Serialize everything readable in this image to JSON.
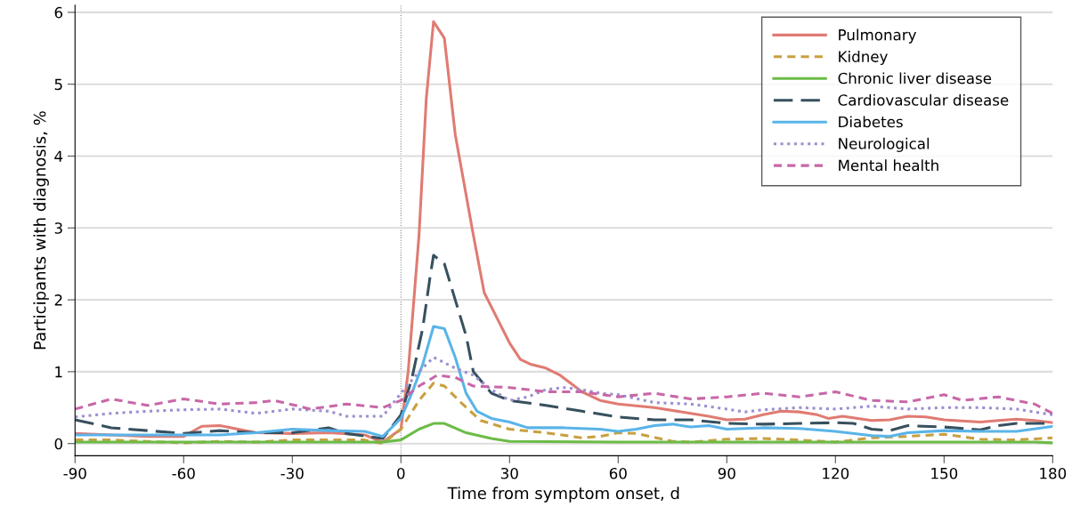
{
  "chart_data": {
    "type": "line",
    "xlabel": "Time from symptom onset, d",
    "ylabel": "Participants with diagnosis, %",
    "xlim": [
      -90,
      180
    ],
    "xticks": [
      -90,
      -60,
      -30,
      0,
      30,
      60,
      90,
      120,
      150,
      180
    ],
    "ylim": [
      -0.17,
      6.1
    ],
    "yticks": [
      0,
      1,
      2,
      3,
      4,
      5,
      6
    ],
    "grid": "y",
    "legend": "top right",
    "marker": "none",
    "ref_lines": [
      {
        "axis": "x",
        "value": 0,
        "color": "#888888",
        "line_style": "dotted"
      }
    ],
    "series": [
      {
        "name": "Pulmonary",
        "color": "#e07b72",
        "line_style": "solid",
        "x": [
          -90,
          -80,
          -70,
          -60,
          -55,
          -50,
          -45,
          -40,
          -30,
          -20,
          -10,
          -5,
          0,
          2,
          5,
          7,
          9,
          12,
          15,
          20,
          23,
          27,
          30,
          33,
          36,
          40,
          44,
          50,
          55,
          60,
          70,
          80,
          85,
          90,
          95,
          100,
          105,
          110,
          115,
          118,
          122,
          130,
          135,
          140,
          145,
          150,
          160,
          165,
          170,
          175,
          180
        ],
        "values": [
          0.14,
          0.12,
          0.1,
          0.1,
          0.24,
          0.25,
          0.2,
          0.15,
          0.14,
          0.15,
          0.12,
          0.02,
          0.2,
          1.0,
          2.9,
          4.8,
          5.87,
          5.64,
          4.3,
          2.9,
          2.1,
          1.7,
          1.4,
          1.17,
          1.1,
          1.05,
          0.95,
          0.72,
          0.6,
          0.55,
          0.5,
          0.42,
          0.38,
          0.33,
          0.34,
          0.4,
          0.45,
          0.44,
          0.4,
          0.35,
          0.38,
          0.32,
          0.33,
          0.38,
          0.37,
          0.33,
          0.3,
          0.32,
          0.34,
          0.32,
          0.29
        ]
      },
      {
        "name": "Kidney",
        "color": "#c8a040",
        "line_style": "dashed",
        "x": [
          -90,
          -80,
          -70,
          -60,
          -50,
          -40,
          -30,
          -20,
          -10,
          -5,
          0,
          5,
          9,
          12,
          17,
          22,
          30,
          40,
          50,
          55,
          60,
          65,
          75,
          80,
          90,
          100,
          110,
          120,
          130,
          140,
          150,
          160,
          170,
          180
        ],
        "values": [
          0.05,
          0.05,
          0.03,
          0.01,
          0.03,
          0.02,
          0.05,
          0.05,
          0.05,
          0.0,
          0.2,
          0.6,
          0.84,
          0.8,
          0.55,
          0.32,
          0.2,
          0.15,
          0.08,
          0.1,
          0.15,
          0.14,
          0.03,
          0.02,
          0.06,
          0.07,
          0.05,
          0.02,
          0.08,
          0.1,
          0.13,
          0.06,
          0.05,
          0.08
        ]
      },
      {
        "name": "Chronic liver disease",
        "color": "#6cbb47",
        "line_style": "solid",
        "x": [
          -90,
          -60,
          -30,
          -5,
          0,
          5,
          9,
          12,
          18,
          25,
          30,
          60,
          90,
          120,
          150,
          175,
          180
        ],
        "values": [
          0.02,
          0.02,
          0.02,
          0.02,
          0.05,
          0.2,
          0.28,
          0.28,
          0.15,
          0.07,
          0.03,
          0.02,
          0.02,
          0.02,
          0.02,
          0.02,
          0.01
        ]
      },
      {
        "name": "Cardiovascular disease",
        "color": "#37505e",
        "line_style": "longdash",
        "x": [
          -90,
          -80,
          -70,
          -60,
          -50,
          -40,
          -30,
          -20,
          -15,
          -5,
          0,
          3,
          6,
          8,
          9,
          12,
          15,
          18,
          20,
          25,
          30,
          36,
          40,
          50,
          60,
          70,
          80,
          90,
          100,
          110,
          120,
          125,
          130,
          135,
          140,
          150,
          160,
          165,
          170,
          180
        ],
        "values": [
          0.33,
          0.22,
          0.18,
          0.14,
          0.18,
          0.15,
          0.15,
          0.22,
          0.14,
          0.07,
          0.4,
          0.9,
          1.6,
          2.3,
          2.62,
          2.5,
          2.0,
          1.5,
          1.0,
          0.7,
          0.6,
          0.56,
          0.53,
          0.45,
          0.37,
          0.33,
          0.33,
          0.28,
          0.27,
          0.28,
          0.29,
          0.28,
          0.2,
          0.18,
          0.25,
          0.23,
          0.19,
          0.25,
          0.28,
          0.28
        ]
      },
      {
        "name": "Diabetes",
        "color": "#5ab4e8",
        "line_style": "solid",
        "x": [
          -90,
          -80,
          -70,
          -60,
          -50,
          -40,
          -30,
          -20,
          -10,
          -5,
          0,
          3,
          6,
          9,
          12,
          15,
          18,
          21,
          25,
          30,
          35,
          45,
          55,
          60,
          65,
          70,
          75,
          80,
          85,
          90,
          100,
          110,
          120,
          130,
          135,
          140,
          150,
          160,
          170,
          180
        ],
        "values": [
          0.12,
          0.12,
          0.12,
          0.12,
          0.12,
          0.15,
          0.2,
          0.18,
          0.17,
          0.1,
          0.35,
          0.7,
          1.1,
          1.63,
          1.6,
          1.2,
          0.7,
          0.45,
          0.35,
          0.3,
          0.22,
          0.22,
          0.2,
          0.17,
          0.2,
          0.25,
          0.27,
          0.23,
          0.25,
          0.2,
          0.22,
          0.21,
          0.17,
          0.11,
          0.1,
          0.15,
          0.18,
          0.17,
          0.17,
          0.24
        ]
      },
      {
        "name": "Neurological",
        "color": "#9b8fd0",
        "line_style": "dotted",
        "x": [
          -90,
          -80,
          -70,
          -60,
          -50,
          -40,
          -30,
          -20,
          -15,
          -5,
          0,
          5,
          9,
          15,
          20,
          25,
          30,
          35,
          40,
          45,
          50,
          55,
          60,
          70,
          80,
          90,
          95,
          100,
          110,
          120,
          130,
          140,
          150,
          160,
          170,
          180
        ],
        "values": [
          0.37,
          0.42,
          0.45,
          0.47,
          0.48,
          0.42,
          0.48,
          0.45,
          0.38,
          0.38,
          0.7,
          1.0,
          1.2,
          1.05,
          0.95,
          0.75,
          0.6,
          0.65,
          0.75,
          0.78,
          0.75,
          0.7,
          0.68,
          0.57,
          0.55,
          0.48,
          0.44,
          0.47,
          0.5,
          0.48,
          0.52,
          0.48,
          0.5,
          0.5,
          0.48,
          0.4
        ]
      },
      {
        "name": "Mental health",
        "color": "#c867a8",
        "line_style": "dashed",
        "x": [
          -90,
          -80,
          -70,
          -60,
          -50,
          -40,
          -35,
          -25,
          -15,
          -5,
          0,
          5,
          10,
          15,
          20,
          30,
          40,
          50,
          60,
          70,
          80,
          90,
          100,
          110,
          120,
          130,
          140,
          150,
          155,
          165,
          175,
          180
        ],
        "values": [
          0.48,
          0.62,
          0.53,
          0.62,
          0.55,
          0.57,
          0.6,
          0.48,
          0.55,
          0.5,
          0.6,
          0.8,
          0.95,
          0.92,
          0.8,
          0.78,
          0.72,
          0.72,
          0.65,
          0.7,
          0.62,
          0.65,
          0.7,
          0.65,
          0.72,
          0.6,
          0.58,
          0.68,
          0.6,
          0.65,
          0.55,
          0.42
        ]
      }
    ]
  }
}
